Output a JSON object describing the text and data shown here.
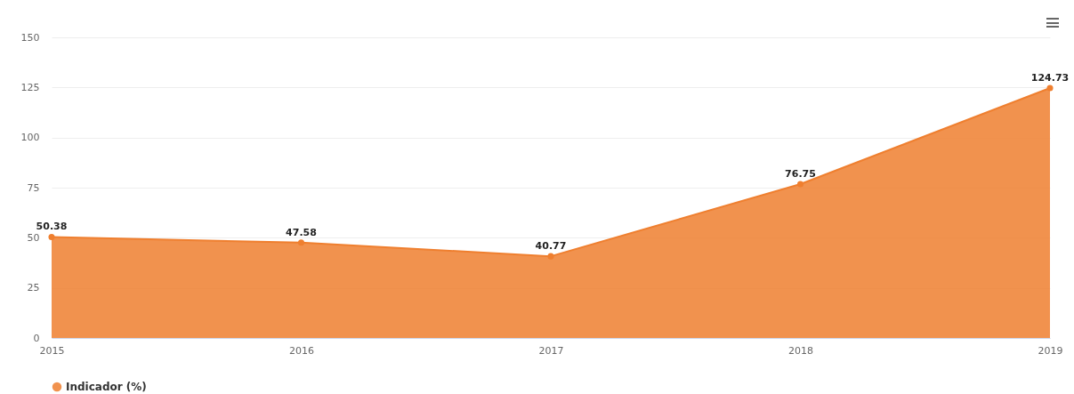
{
  "chart_data": {
    "type": "area",
    "categories": [
      "2015",
      "2016",
      "2017",
      "2018",
      "2019"
    ],
    "series": [
      {
        "name": "Indicador (%)",
        "color": "#ef7f2f",
        "values": [
          50.38,
          47.58,
          40.77,
          76.75,
          124.73
        ]
      }
    ],
    "ylim": [
      0,
      150
    ],
    "yticks": [
      0,
      25,
      50,
      75,
      100,
      125,
      150
    ],
    "grid": "y",
    "legend": "bottom",
    "marker": "circle",
    "data_labels": true
  }
}
